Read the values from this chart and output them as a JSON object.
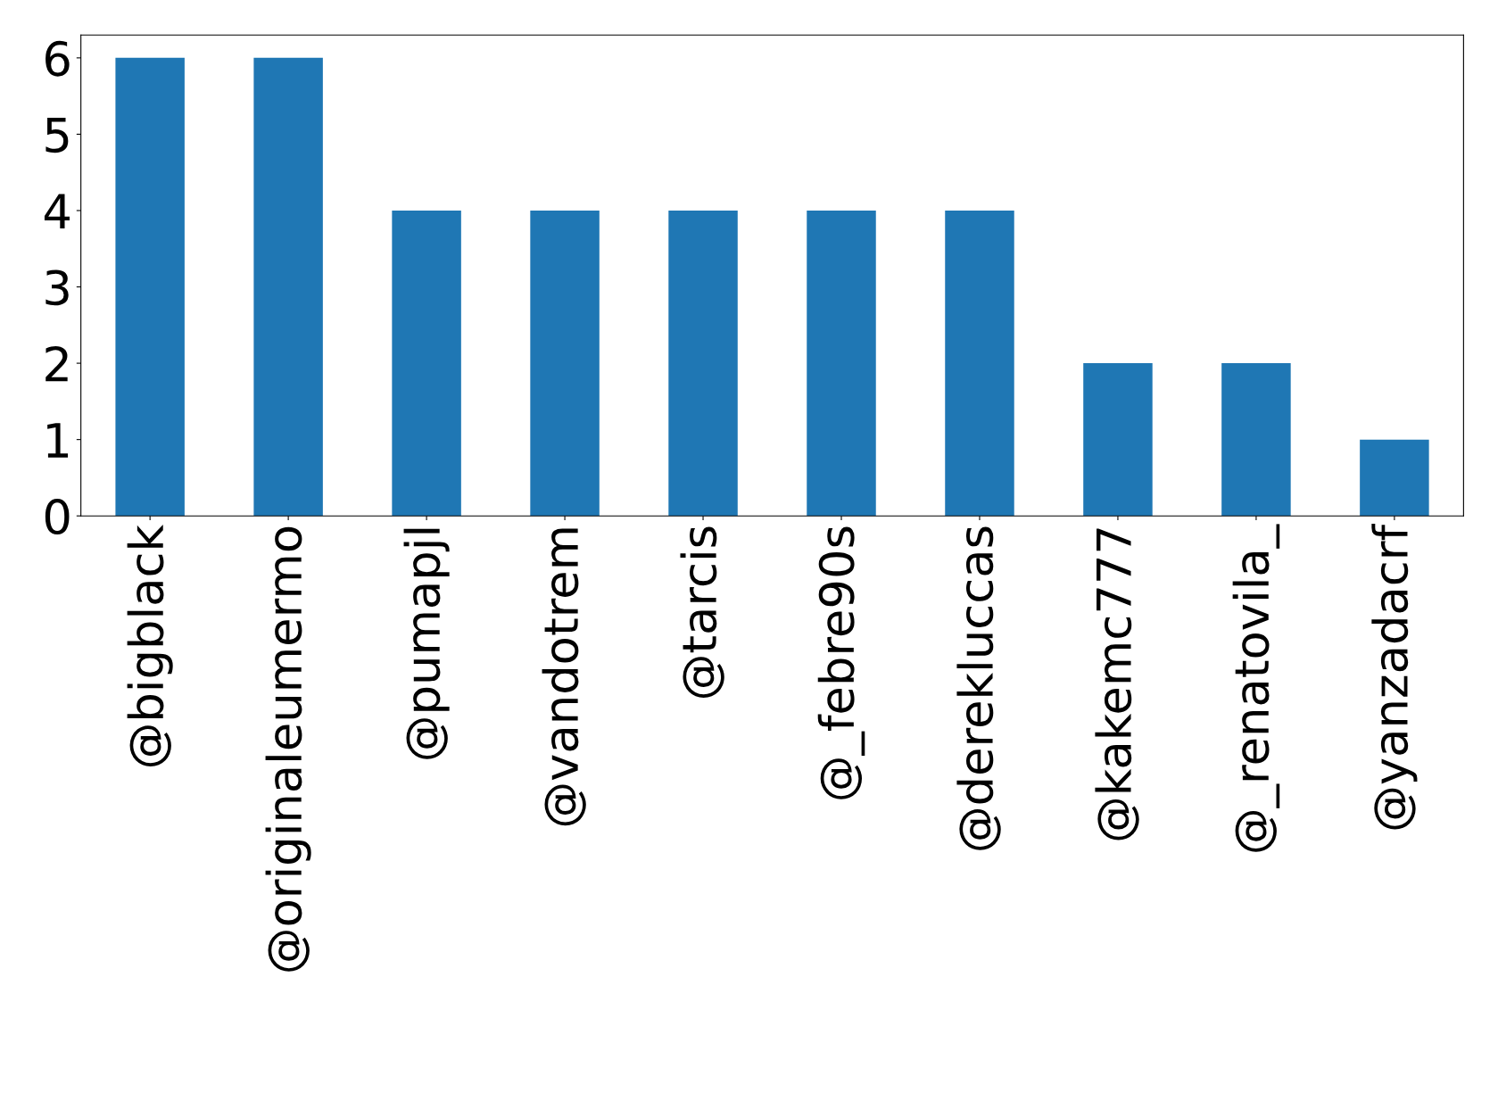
{
  "chart_data": {
    "type": "bar",
    "categories": [
      "@bigblack",
      "@originaleumermo",
      "@pumapjl",
      "@vandotrem",
      "@tarcis",
      "@_febre90s",
      "@derekluccas",
      "@kakemc777",
      "@_renatovila_",
      "@yanzadacrf"
    ],
    "values": [
      6,
      6,
      4,
      4,
      4,
      4,
      4,
      2,
      2,
      1
    ],
    "color": "#1f77b4",
    "ylim": [
      0,
      6.3
    ],
    "yticks": [
      0,
      1,
      2,
      3,
      4,
      5,
      6
    ],
    "grid": false,
    "legend": false
  }
}
